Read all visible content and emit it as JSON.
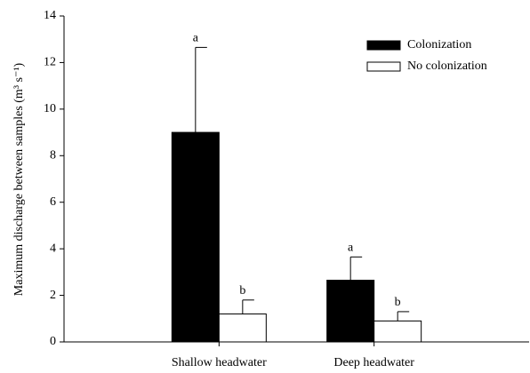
{
  "chart_data": {
    "type": "bar",
    "y_label": "Maximum discharge between samples (m³ s⁻¹)",
    "categories": [
      "Shallow headwater",
      "Deep headwater"
    ],
    "series": [
      {
        "name": "Colonization",
        "color": "#000000",
        "values": [
          9.0,
          2.65
        ],
        "errors": [
          3.65,
          1.0
        ],
        "labels": [
          "a",
          "a"
        ]
      },
      {
        "name": "No colonization",
        "color": "#ffffff",
        "values": [
          1.2,
          0.9
        ],
        "errors": [
          0.6,
          0.4
        ],
        "labels": [
          "b",
          "b"
        ]
      }
    ],
    "ylim": [
      0,
      14
    ],
    "yticks": [
      0,
      2,
      4,
      6,
      8,
      10,
      12,
      14
    ],
    "grid": false,
    "legend": "top-right"
  }
}
